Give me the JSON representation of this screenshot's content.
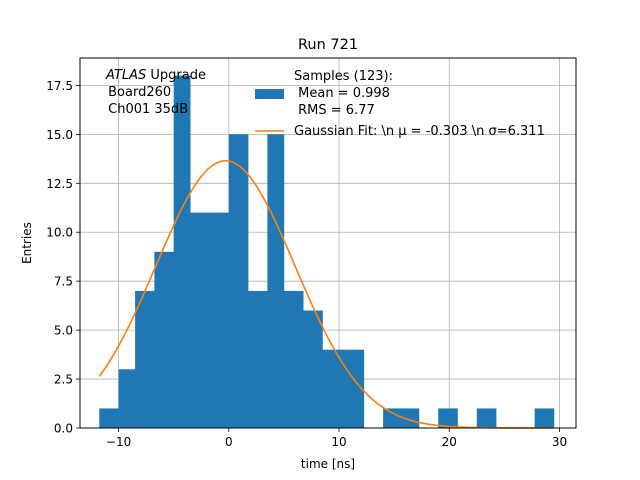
{
  "chart_data": {
    "type": "bar",
    "title": "Run 721",
    "xlabel": "time [ns]",
    "ylabel": "Entries",
    "xlim": [
      -13.5,
      31.5
    ],
    "ylim": [
      0,
      18.9
    ],
    "xticks": [
      -10,
      0,
      10,
      20,
      30
    ],
    "xtick_labels": [
      "−10",
      "0",
      "10",
      "20",
      "30"
    ],
    "yticks": [
      0.0,
      2.5,
      5.0,
      7.5,
      10.0,
      12.5,
      15.0,
      17.5
    ],
    "ytick_labels": [
      "0.0",
      "2.5",
      "5.0",
      "7.5",
      "10.0",
      "12.5",
      "15.0",
      "17.5"
    ],
    "grid": true,
    "bin_edges": [
      -11.75,
      -10.0,
      -8.5,
      -6.75,
      -5.0,
      -3.5,
      -1.75,
      0.0,
      1.75,
      3.5,
      5.0,
      6.75,
      8.5,
      10.0,
      12.25,
      14.0,
      15.5,
      17.25,
      19.0,
      20.75,
      22.5,
      24.25,
      26.0,
      27.75,
      29.5
    ],
    "counts": [
      1,
      3,
      7,
      9,
      18,
      11,
      11,
      15,
      7,
      15,
      7,
      6,
      4,
      4,
      0,
      1,
      1,
      0,
      1,
      0,
      1,
      0,
      0,
      1
    ],
    "fit": {
      "type": "gaussian",
      "mu": -0.303,
      "sigma": 6.311,
      "amplitude": 13.65,
      "x_range": [
        -11.75,
        29.5
      ]
    },
    "series": [
      {
        "name": "Samples (123):\n Mean = 0.998\n RMS = 6.77",
        "color": "#1f77b4",
        "kind": "histogram"
      },
      {
        "name": "Gaussian Fit: \\n μ = -0.303 \\n σ=6.311",
        "color": "#ff7f0e",
        "kind": "line"
      }
    ],
    "legend": {
      "placement": "top-right",
      "hist_lines": [
        "Samples (123):",
        " Mean = 0.998",
        " RMS = 6.77"
      ],
      "fit_label": "Gaussian Fit: \\n μ = -0.303 \\n σ=6.311"
    },
    "annotation": {
      "placement": "top-left",
      "italic": "ATLAS",
      "rest": " Upgrade",
      "lines": [
        " Board260",
        " Ch001 35dB"
      ]
    }
  }
}
